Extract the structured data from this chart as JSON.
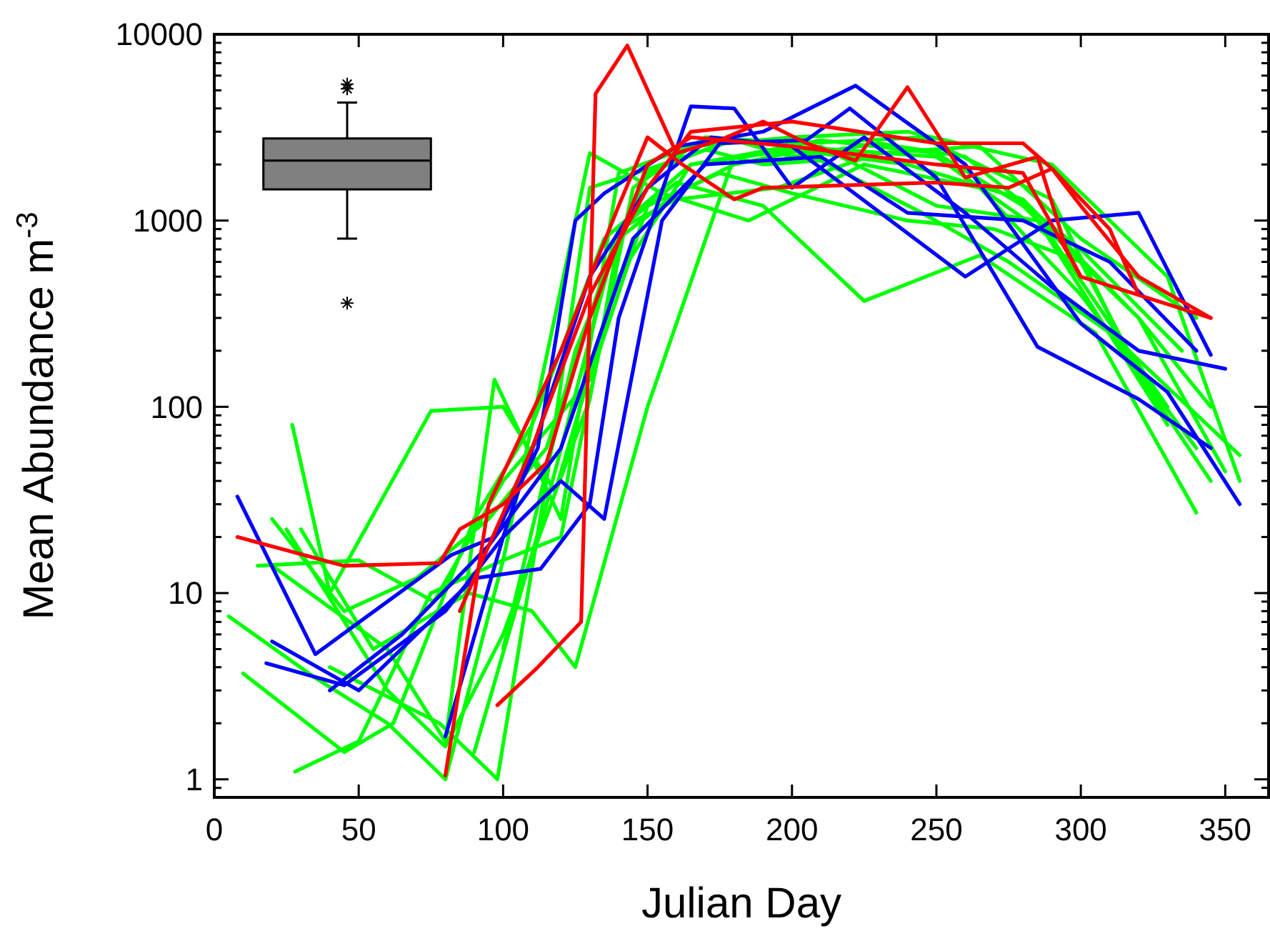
{
  "chart_data": {
    "type": "line",
    "xlabel": "Julian Day",
    "ylabel": "Mean Abundance m$^{-3}$",
    "log": "y",
    "grid": false,
    "marker": "none",
    "line_style": "solid",
    "xlim": [
      0,
      365
    ],
    "ylim": [
      0.8,
      10000
    ],
    "xticks": [
      0,
      50,
      100,
      150,
      200,
      250,
      300,
      350
    ],
    "yticks": [
      {
        "value": 0.9,
        "label": null
      },
      1,
      {
        "value": 2,
        "label": null
      },
      {
        "value": 3,
        "label": null
      },
      {
        "value": 4,
        "label": null
      },
      {
        "value": 5,
        "label": null
      },
      {
        "value": 6,
        "label": null
      },
      {
        "value": 7,
        "label": null
      },
      {
        "value": 8,
        "label": null
      },
      {
        "value": 9,
        "label": null
      },
      10,
      {
        "value": 20,
        "label": null
      },
      {
        "value": 30,
        "label": null
      },
      {
        "value": 40,
        "label": null
      },
      {
        "value": 50,
        "label": null
      },
      {
        "value": 60,
        "label": null
      },
      {
        "value": 70,
        "label": null
      },
      {
        "value": 80,
        "label": null
      },
      {
        "value": 90,
        "label": null
      },
      100,
      {
        "value": 200,
        "label": null
      },
      {
        "value": 300,
        "label": null
      },
      {
        "value": 400,
        "label": null
      },
      {
        "value": 500,
        "label": null
      },
      {
        "value": 600,
        "label": null
      },
      {
        "value": 700,
        "label": null
      },
      {
        "value": 800,
        "label": null
      },
      {
        "value": 900,
        "label": null
      },
      1000,
      {
        "value": 2000,
        "label": null
      },
      {
        "value": 3000,
        "label": null
      },
      {
        "value": 4000,
        "label": null
      },
      {
        "value": 5000,
        "label": null
      },
      {
        "value": 6000,
        "label": null
      },
      {
        "value": 7000,
        "label": null
      },
      {
        "value": 8000,
        "label": null
      },
      {
        "value": 9000,
        "label": null
      },
      10000
    ],
    "series": [
      {
        "color": "#00ff00",
        "x": [
          27,
          40,
          75,
          100,
          118,
          140,
          165,
          200,
          240,
          280,
          320,
          345
        ],
        "values": [
          80,
          10,
          95,
          100,
          35,
          500,
          2000,
          2400,
          2000,
          1300,
          300,
          100
        ]
      },
      {
        "color": "#00ff00",
        "x": [
          5,
          35,
          60,
          80,
          100,
          130,
          155,
          185,
          225,
          265,
          300,
          340
        ],
        "values": [
          7.5,
          3.5,
          2,
          1,
          15,
          2300,
          1400,
          1000,
          2000,
          1500,
          400,
          60
        ]
      },
      {
        "color": "#00ff00",
        "x": [
          10,
          45,
          62,
          90,
          110,
          135,
          165,
          200,
          250,
          290,
          330
        ],
        "values": [
          3.7,
          1.4,
          2,
          25,
          80,
          800,
          2000,
          2500,
          2200,
          800,
          100
        ]
      },
      {
        "color": "#00ff00",
        "x": [
          28,
          50,
          75,
          100,
          120,
          145,
          170,
          205,
          245,
          290,
          320,
          345
        ],
        "values": [
          1.1,
          1.6,
          10,
          15,
          20,
          1500,
          2800,
          2600,
          2800,
          1300,
          150,
          40
        ]
      },
      {
        "color": "#00ff00",
        "x": [
          20,
          45,
          70,
          95,
          115,
          140,
          160,
          190,
          225,
          265,
          305,
          340
        ],
        "values": [
          25,
          8,
          12,
          25,
          60,
          900,
          1600,
          1200,
          370,
          650,
          250,
          27
        ]
      },
      {
        "color": "#00ff00",
        "x": [
          15,
          50,
          76,
          100,
          130,
          150,
          175,
          200,
          240,
          270,
          300,
          330
        ],
        "values": [
          14,
          15,
          9,
          40,
          140,
          1200,
          1800,
          1400,
          1000,
          900,
          600,
          80
        ]
      },
      {
        "color": "#00ff00",
        "x": [
          25,
          60,
          80,
          100,
          130,
          140,
          160,
          180,
          210,
          250,
          285,
          330
        ],
        "values": [
          22,
          3,
          1.5,
          6,
          110,
          800,
          1400,
          2000,
          2500,
          1200,
          1000,
          80
        ]
      },
      {
        "color": "#00ff00",
        "x": [
          40,
          78,
          98,
          115,
          130,
          155,
          180,
          200,
          230,
          260,
          300,
          335
        ],
        "values": [
          4,
          2,
          1,
          40,
          1500,
          2000,
          2700,
          2200,
          2600,
          2200,
          700,
          200
        ]
      },
      {
        "color": "#00ff00",
        "x": [
          20,
          60,
          80,
          97,
          120,
          140,
          165,
          200,
          240,
          290,
          330,
          355
        ],
        "values": [
          14,
          5,
          1.6,
          140,
          25,
          1800,
          2500,
          2800,
          3000,
          2000,
          500,
          40
        ]
      },
      {
        "color": "#00ff00",
        "x": [
          30,
          55,
          88,
          110,
          125,
          150,
          180,
          210,
          250,
          280,
          320,
          350
        ],
        "values": [
          22,
          5,
          10,
          8,
          4,
          100,
          2200,
          2700,
          2300,
          1200,
          300,
          45
        ]
      },
      {
        "color": "#00ff00",
        "x": [
          90,
          115,
          140,
          160,
          195,
          230,
          265,
          300,
          340
        ],
        "values": [
          1.4,
          30,
          900,
          1300,
          1500,
          2300,
          2500,
          800,
          300
        ]
      },
      {
        "color": "#00ff00",
        "x": [
          100,
          125,
          150,
          170,
          190,
          210,
          245,
          275,
          310,
          355
        ],
        "values": [
          5,
          200,
          1800,
          2400,
          2000,
          2100,
          1100,
          600,
          250,
          55
        ]
      },
      {
        "color": "#0000ff",
        "x": [
          8,
          35,
          82,
          97,
          112,
          125,
          135,
          160,
          190,
          222,
          260,
          300,
          330,
          355
        ],
        "values": [
          33,
          4.7,
          16,
          20,
          60,
          1000,
          1400,
          2500,
          3000,
          5300,
          2000,
          280,
          120,
          30
        ]
      },
      {
        "color": "#0000ff",
        "x": [
          20,
          50,
          90,
          113,
          130,
          140,
          165,
          180,
          200,
          225,
          260,
          290,
          320,
          350
        ],
        "values": [
          5.5,
          3,
          12,
          13.5,
          30,
          300,
          4100,
          4000,
          1500,
          2800,
          1100,
          440,
          200,
          160
        ]
      },
      {
        "color": "#0000ff",
        "x": [
          18,
          45,
          80,
          100,
          120,
          135,
          155,
          175,
          205,
          220,
          250,
          285,
          320,
          345
        ],
        "values": [
          4.2,
          3.2,
          8,
          20,
          40,
          25,
          1000,
          2600,
          2700,
          4000,
          1700,
          210,
          110,
          60
        ]
      },
      {
        "color": "#0000ff",
        "x": [
          80,
          100,
          130,
          150,
          172,
          200,
          260,
          290,
          320,
          345
        ],
        "values": [
          1.7,
          20,
          500,
          1500,
          2800,
          2500,
          500,
          1000,
          1100,
          190
        ]
      },
      {
        "color": "#0000ff",
        "x": [
          40,
          65,
          95,
          120,
          145,
          170,
          210,
          240,
          280,
          310,
          340
        ],
        "values": [
          3,
          6,
          18,
          60,
          800,
          2000,
          2200,
          1100,
          1000,
          600,
          200
        ]
      },
      {
        "color": "#ff0000",
        "x": [
          8,
          45,
          78,
          85,
          100,
          115,
          130,
          150,
          165,
          200,
          250,
          280,
          300,
          345
        ],
        "values": [
          20,
          14,
          14.5,
          22,
          30,
          50,
          300,
          2000,
          2800,
          2500,
          2000,
          1800,
          500,
          300
        ]
      },
      {
        "color": "#ff0000",
        "x": [
          98,
          112,
          127,
          132,
          143,
          160,
          175,
          190,
          205,
          222,
          240,
          260,
          285,
          295,
          300
        ],
        "values": [
          2.5,
          4,
          7,
          4800,
          8700,
          2300,
          2700,
          3400,
          2600,
          2100,
          5200,
          1700,
          2200,
          700,
          500
        ]
      },
      {
        "color": "#ff0000",
        "x": [
          80,
          95,
          120,
          140,
          150,
          162,
          180,
          190,
          250,
          275,
          290,
          310,
          320
        ],
        "values": [
          1.05,
          30,
          200,
          1200,
          2800,
          2000,
          1300,
          1500,
          1600,
          1500,
          1900,
          900,
          400
        ]
      },
      {
        "color": "#ff0000",
        "x": [
          85,
          110,
          130,
          150,
          165,
          200,
          250,
          280,
          290,
          300,
          320,
          345
        ],
        "values": [
          8,
          60,
          400,
          1500,
          3000,
          3400,
          2600,
          2600,
          1900,
          1200,
          500,
          300
        ]
      },
      {
        "type": "box",
        "color": "#808080",
        "x": [
          46
        ],
        "boxes": [
          {
            "low": 800,
            "q1": 1470,
            "median": 2100,
            "q3": 2760,
            "high": 4300,
            "outliers": [
              5400,
              5100,
              360
            ]
          }
        ]
      }
    ]
  }
}
